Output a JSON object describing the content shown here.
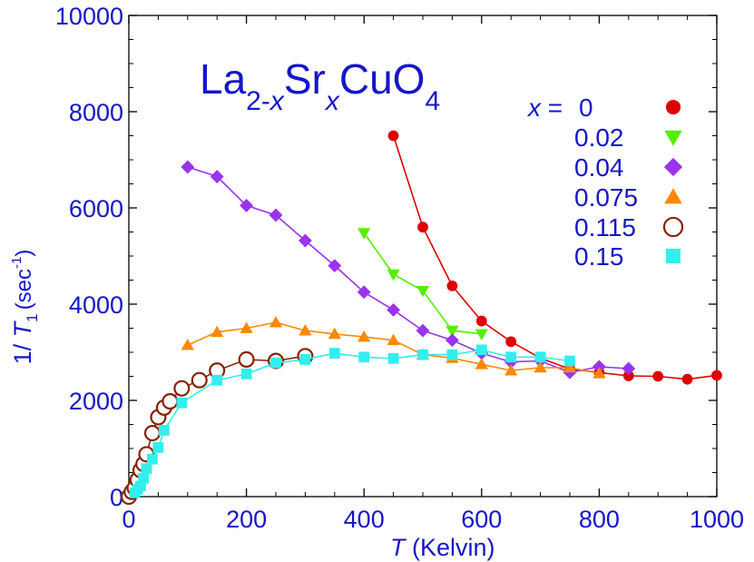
{
  "chart_data": {
    "type": "line",
    "title_parts": {
      "La": "La",
      "la_sub": "2-",
      "la_sub_italic": "x",
      "Sr": "Sr",
      "sr_sub": "x",
      "CuO": "CuO",
      "cuo_sub": "4"
    },
    "xlabel_italic": "T",
    "xlabel_rest": " (Kelvin)",
    "ylabel_prefix": "1/ ",
    "ylabel_italic": "T",
    "ylabel_sub": "1",
    "ylabel_unit": "(sec",
    "ylabel_sup": "-1",
    "ylabel_close": ")",
    "xlim": [
      0,
      1000
    ],
    "ylim": [
      0,
      10000
    ],
    "xticks": [
      "0",
      "200",
      "400",
      "600",
      "800",
      "1000"
    ],
    "yticks": [
      "0",
      "2000",
      "4000",
      "6000",
      "8000",
      "10000"
    ],
    "legend_prefix_italic": "x",
    "legend_prefix_eq": " =",
    "series": [
      {
        "name": "0",
        "color": "#dd0000",
        "marker": "circle",
        "x": [
          450,
          500,
          550,
          600,
          650,
          700,
          750,
          800,
          850,
          900,
          950,
          1000
        ],
        "y": [
          7500,
          5600,
          4380,
          3650,
          3220,
          2880,
          2650,
          2580,
          2510,
          2500,
          2440,
          2520
        ]
      },
      {
        "name": "0.02",
        "color": "#55ee00",
        "marker": "triangle-down",
        "x": [
          400,
          450,
          500,
          550,
          600
        ],
        "y": [
          5480,
          4620,
          4280,
          3450,
          3380
        ]
      },
      {
        "name": "0.04",
        "color": "#9933ee",
        "marker": "diamond",
        "x": [
          100,
          150,
          200,
          250,
          300,
          350,
          400,
          450,
          500,
          550,
          600,
          650,
          700,
          750,
          800,
          850
        ],
        "y": [
          6850,
          6650,
          6050,
          5850,
          5320,
          4800,
          4250,
          3880,
          3450,
          3250,
          2980,
          2800,
          2820,
          2580,
          2700,
          2660
        ]
      },
      {
        "name": "0.075",
        "color": "#ff8800",
        "marker": "triangle-up",
        "x": [
          100,
          150,
          200,
          250,
          300,
          350,
          400,
          450,
          500,
          550,
          600,
          650,
          700,
          750,
          800
        ],
        "y": [
          3150,
          3420,
          3500,
          3620,
          3450,
          3380,
          3320,
          3250,
          2950,
          2880,
          2750,
          2620,
          2680,
          2680,
          2560
        ]
      },
      {
        "name": "0.115",
        "color": "#882200",
        "marker": "circle-open",
        "x": [
          0,
          5,
          10,
          15,
          20,
          25,
          30,
          40,
          50,
          60,
          70,
          90,
          120,
          150,
          200,
          250,
          300
        ],
        "y": [
          0,
          100,
          180,
          350,
          550,
          680,
          880,
          1320,
          1650,
          1850,
          1980,
          2250,
          2420,
          2620,
          2850,
          2820,
          2920
        ]
      },
      {
        "name": "0.15",
        "color": "#33eeee",
        "marker": "square",
        "x": [
          10,
          15,
          20,
          25,
          30,
          40,
          50,
          60,
          90,
          150,
          200,
          250,
          300,
          350,
          400,
          450,
          500,
          550,
          600,
          650,
          700,
          750
        ],
        "y": [
          80,
          150,
          220,
          380,
          580,
          780,
          1020,
          1380,
          1950,
          2420,
          2550,
          2780,
          2850,
          2980,
          2900,
          2870,
          2950,
          2950,
          3050,
          2900,
          2900,
          2820
        ]
      }
    ]
  }
}
